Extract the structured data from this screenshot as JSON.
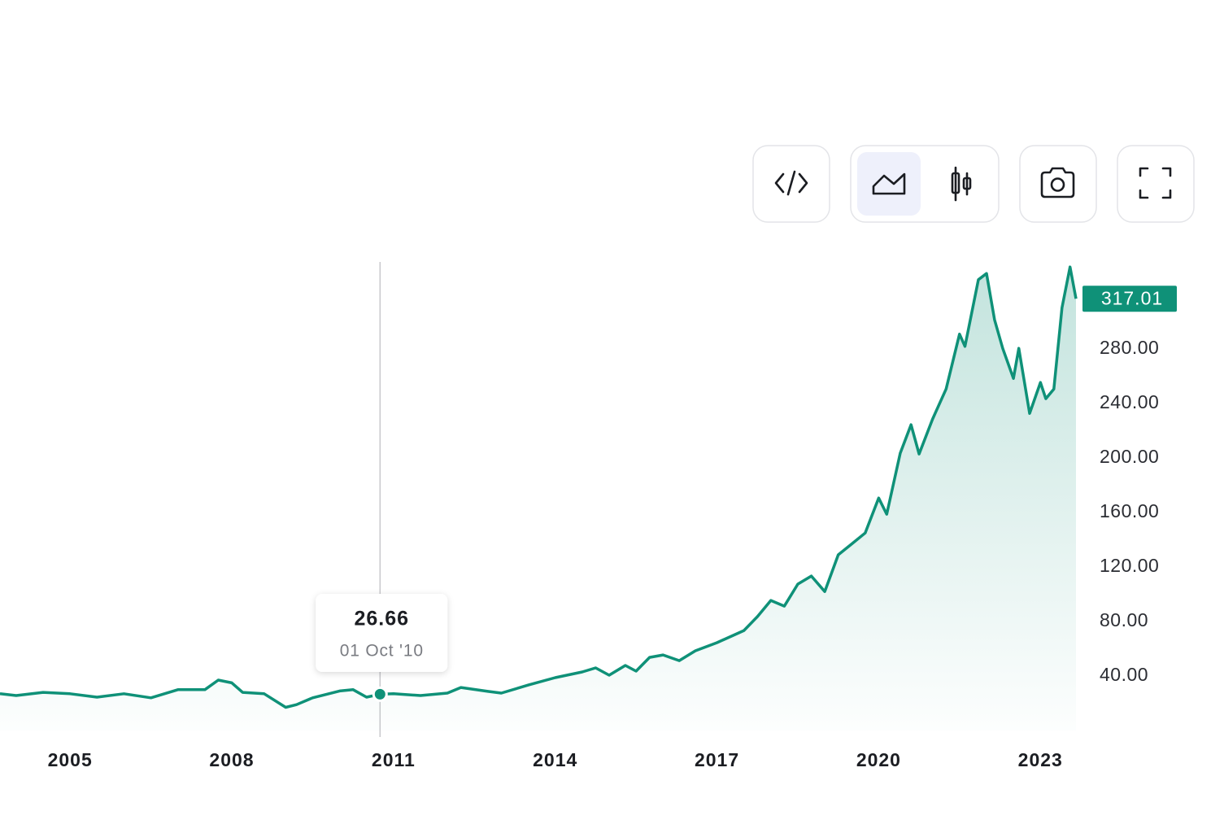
{
  "chart_data": {
    "type": "area",
    "color": "#0f9178",
    "x": [
      2003.7,
      2004.0,
      2004.5,
      2005.0,
      2005.5,
      2006.0,
      2006.5,
      2007.0,
      2007.5,
      2007.75,
      2008.0,
      2008.2,
      2008.6,
      2009.0,
      2009.2,
      2009.5,
      2010.0,
      2010.25,
      2010.5,
      2010.75,
      2011.0,
      2011.5,
      2012.0,
      2012.25,
      2012.75,
      2013.0,
      2013.5,
      2014.0,
      2014.5,
      2014.75,
      2015.0,
      2015.3,
      2015.5,
      2015.75,
      2016.0,
      2016.3,
      2016.6,
      2017.0,
      2017.5,
      2017.75,
      2018.0,
      2018.25,
      2018.5,
      2018.75,
      2019.0,
      2019.25,
      2019.5,
      2019.75,
      2020.0,
      2020.15,
      2020.4,
      2020.6,
      2020.75,
      2021.0,
      2021.25,
      2021.5,
      2021.6,
      2021.85,
      2022.0,
      2022.15,
      2022.3,
      2022.5,
      2022.6,
      2022.8,
      2023.0,
      2023.1,
      2023.25,
      2023.4,
      2023.55,
      2023.66
    ],
    "values": [
      27,
      25.7,
      28,
      27,
      24.5,
      27,
      24,
      30,
      30,
      37,
      35,
      28,
      27,
      17,
      19,
      24,
      29,
      30,
      24.5,
      26.66,
      27,
      25.7,
      27.5,
      31.6,
      28.7,
      27.5,
      33.4,
      38.8,
      43,
      46,
      40.6,
      47.8,
      43.6,
      53.7,
      55.5,
      51.3,
      58.5,
      64.5,
      73.4,
      83.6,
      95.5,
      91.3,
      107.5,
      113.4,
      102,
      129,
      137,
      145,
      170.7,
      158.8,
      203.6,
      224.5,
      203,
      228.7,
      250.7,
      291,
      282,
      331,
      335.5,
      301.5,
      280.6,
      258.5,
      280.6,
      232.8,
      255.5,
      243.6,
      250.7,
      310.4,
      340.3,
      317.01
    ],
    "xlim": [
      2003.7,
      2023.66
    ],
    "ylim": [
      0,
      344
    ],
    "xticks": [
      2005,
      2008,
      2011,
      2014,
      2017,
      2020,
      2023
    ],
    "yticks": [
      {
        "value": 40,
        "label": "40.00"
      },
      {
        "value": 80,
        "label": "80.00"
      },
      {
        "value": 120,
        "label": "120.00"
      },
      {
        "value": 160,
        "label": "160.00"
      },
      {
        "value": 200,
        "label": "200.00"
      },
      {
        "value": 240,
        "label": "240.00"
      },
      {
        "value": 280,
        "label": "280.00"
      }
    ],
    "tooltip": {
      "x": 2010.75,
      "value": 26.66,
      "label": "01 Oct '10"
    }
  }
}
